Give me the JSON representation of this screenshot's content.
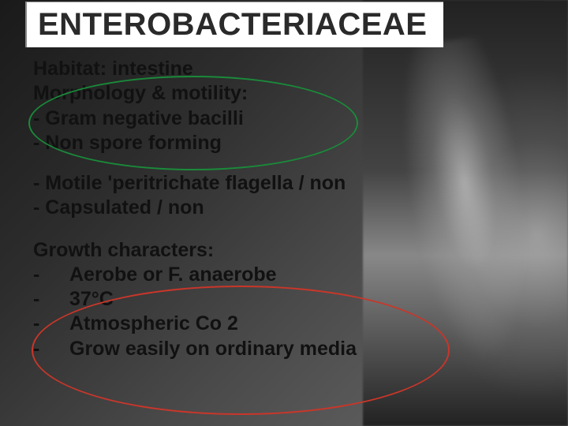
{
  "title": "ENTEROBACTERIACEAE",
  "habitat_label": "Habitat:",
  "habitat_value": " intestine",
  "morph_label": "Morphology & motility:",
  "morph_items": {
    "a": "- Gram negative bacilli",
    "b": "- Non spore forming"
  },
  "mid_items": {
    "a": "- Motile 'peritrichate flagella / non",
    "b": "- Capsulated / non"
  },
  "growth_label": "Growth characters:",
  "growth_items": {
    "a": "Aerobe or F. anaerobe",
    "b": "37°C",
    "c": "Atmospheric Co 2",
    "d": "Grow easily on ordinary media"
  },
  "colors": {
    "ellipse_green": "#1a8a3a",
    "ellipse_red": "#c9362a",
    "title_box_bg": "#ffffff",
    "text": "#111111"
  }
}
